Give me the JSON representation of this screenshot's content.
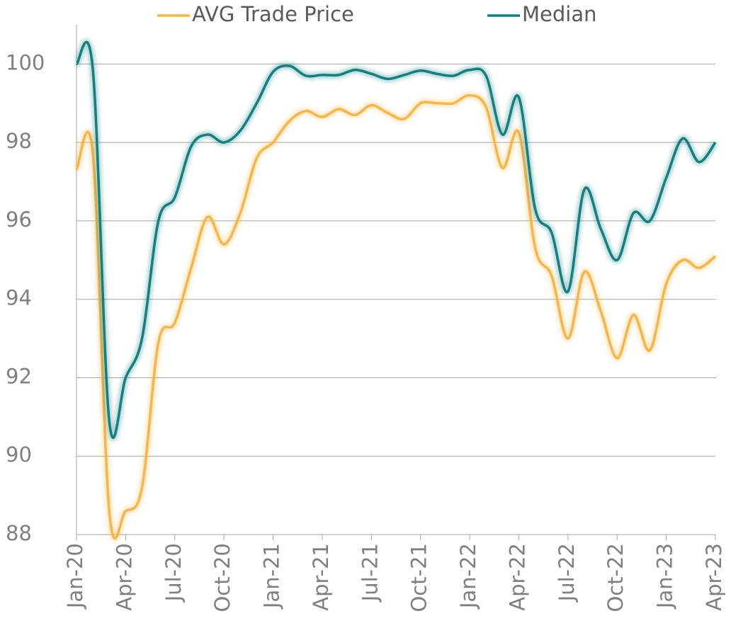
{
  "chart_data": {
    "type": "line",
    "categories": [
      "Jan-20",
      null,
      null,
      "Apr-20",
      null,
      null,
      "Jul-20",
      null,
      null,
      "Oct-20",
      null,
      null,
      "Jan-21",
      null,
      null,
      "Apr-21",
      null,
      null,
      "Jul-21",
      null,
      null,
      "Oct-21",
      null,
      null,
      "Jan-22",
      null,
      null,
      "Apr-22",
      null,
      null,
      "Jul-22",
      null,
      null,
      "Oct-22",
      null,
      null,
      "Jan-23",
      null,
      null,
      "Apr-23"
    ],
    "series": [
      {
        "name": "AVG Trade Price",
        "color": "#f7b545",
        "values": [
          97.3,
          97.7,
          88.6,
          88.6,
          89.2,
          92.9,
          93.4,
          94.8,
          96.1,
          95.4,
          96.2,
          97.6,
          98.0,
          98.55,
          98.8,
          98.65,
          98.85,
          98.7,
          98.95,
          98.75,
          98.6,
          99.0,
          99.0,
          99.0,
          99.2,
          98.9,
          97.35,
          98.25,
          95.3,
          94.6,
          93.0,
          94.7,
          93.7,
          92.5,
          93.6,
          92.7,
          94.4,
          95.0,
          94.8,
          95.1
        ]
      },
      {
        "name": "Median",
        "color": "#127f80",
        "values": [
          100.0,
          99.85,
          90.9,
          92.0,
          93.0,
          96.0,
          96.6,
          97.9,
          98.2,
          98.0,
          98.3,
          99.0,
          99.8,
          99.95,
          99.7,
          99.72,
          99.72,
          99.85,
          99.75,
          99.62,
          99.72,
          99.83,
          99.75,
          99.7,
          99.85,
          99.7,
          98.2,
          99.15,
          96.3,
          95.7,
          94.2,
          96.8,
          95.8,
          95.0,
          96.2,
          96.0,
          97.1,
          98.1,
          97.5,
          98.0
        ]
      }
    ],
    "ylim": [
      88,
      101
    ],
    "yticks": [
      88,
      90,
      92,
      94,
      96,
      98,
      100
    ],
    "grid": true,
    "legend": "top"
  }
}
